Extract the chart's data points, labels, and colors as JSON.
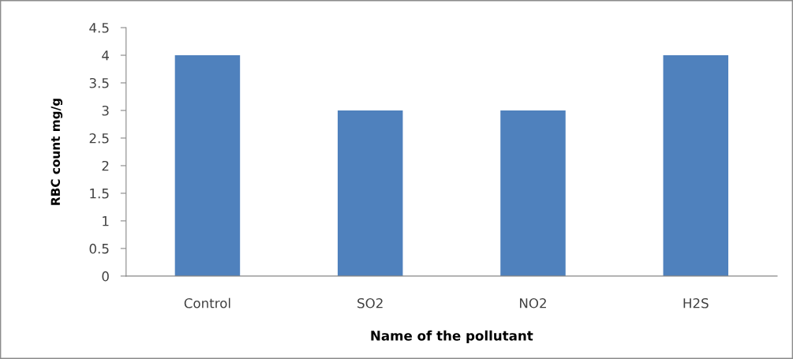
{
  "chart_data": {
    "type": "bar",
    "xlabel": "Name of the pollutant",
    "ylabel": "RBC count mg/g",
    "categories": [
      "Control",
      "SO2",
      "NO2",
      "H2S"
    ],
    "values": [
      4,
      3,
      3,
      4
    ],
    "color": "#4f81bd",
    "ylim": [
      0,
      4.5
    ],
    "yticks": [
      0,
      0.5,
      1,
      1.5,
      2,
      2.5,
      3,
      3.5,
      4,
      4.5
    ],
    "grid": false
  }
}
